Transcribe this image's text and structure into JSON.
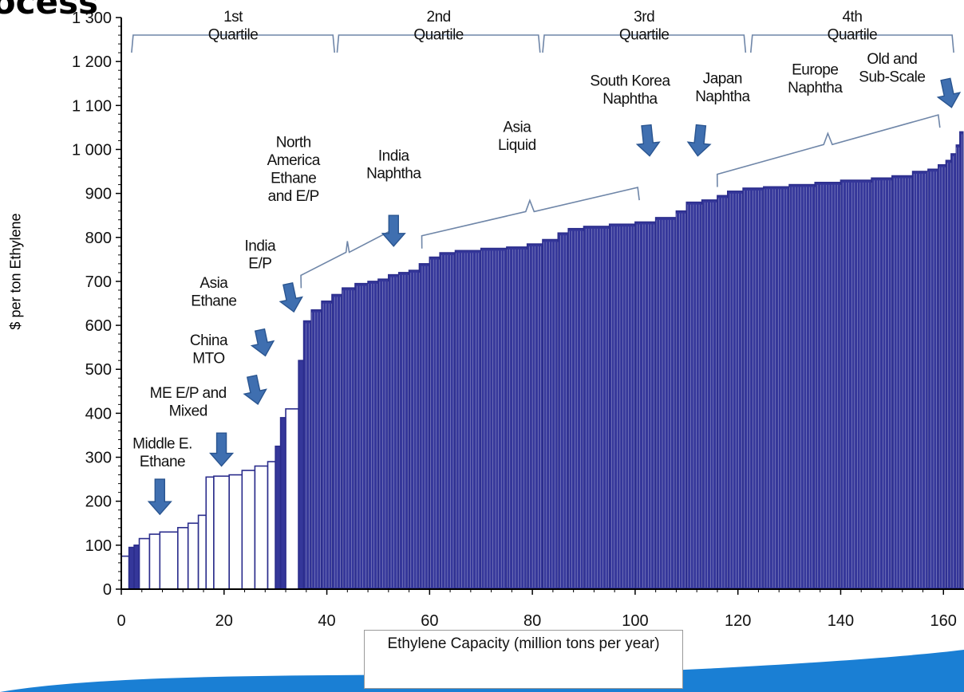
{
  "slide": {
    "title_fragment": "rocess"
  },
  "colors": {
    "bar_fill": "#35379a",
    "bar_edge": "#2b2d8c",
    "brace": "#6f86a8",
    "arrow": "#3f6fb0",
    "arrow_edge": "#2a5590",
    "banner": "#1a7fd4"
  },
  "chart_data": {
    "type": "bar",
    "title": "",
    "xlabel": "Ethylene Capacity (million tons per year)",
    "ylabel": "$ per ton Ethylene",
    "xlim": [
      0,
      164
    ],
    "ylim": [
      0,
      1300
    ],
    "xticks": [
      0,
      20,
      40,
      60,
      80,
      100,
      120,
      140,
      160
    ],
    "yticks": [
      0,
      100,
      200,
      300,
      400,
      500,
      600,
      700,
      800,
      900,
      1000,
      1100,
      1200,
      1300
    ],
    "ytick_labels": [
      "0",
      "100",
      "200",
      "300",
      "400",
      "500",
      "600",
      "700",
      "800",
      "900",
      "1 000",
      "1 100",
      "1 200",
      "1 300"
    ],
    "grid": false,
    "legend": "none",
    "steps": [
      {
        "x_end": 1.5,
        "y": 75
      },
      {
        "x_end": 2.5,
        "y": 95
      },
      {
        "x_end": 3.5,
        "y": 100
      },
      {
        "x_end": 5.5,
        "y": 115
      },
      {
        "x_end": 7.5,
        "y": 125
      },
      {
        "x_end": 11,
        "y": 130
      },
      {
        "x_end": 13,
        "y": 140
      },
      {
        "x_end": 15,
        "y": 150
      },
      {
        "x_end": 16.5,
        "y": 168
      },
      {
        "x_end": 18,
        "y": 255
      },
      {
        "x_end": 21,
        "y": 257
      },
      {
        "x_end": 23.5,
        "y": 260
      },
      {
        "x_end": 26,
        "y": 270
      },
      {
        "x_end": 28.5,
        "y": 280
      },
      {
        "x_end": 30,
        "y": 290
      },
      {
        "x_end": 31,
        "y": 325
      },
      {
        "x_end": 32,
        "y": 390
      },
      {
        "x_end": 34.5,
        "y": 410
      },
      {
        "x_end": 35.5,
        "y": 520
      },
      {
        "x_end": 37,
        "y": 610
      },
      {
        "x_end": 39,
        "y": 635
      },
      {
        "x_end": 41,
        "y": 655
      },
      {
        "x_end": 43,
        "y": 670
      },
      {
        "x_end": 45.5,
        "y": 685
      },
      {
        "x_end": 48,
        "y": 695
      },
      {
        "x_end": 50,
        "y": 700
      },
      {
        "x_end": 52,
        "y": 705
      },
      {
        "x_end": 54,
        "y": 715
      },
      {
        "x_end": 56,
        "y": 720
      },
      {
        "x_end": 58,
        "y": 725
      },
      {
        "x_end": 60,
        "y": 740
      },
      {
        "x_end": 62,
        "y": 755
      },
      {
        "x_end": 65,
        "y": 765
      },
      {
        "x_end": 70,
        "y": 770
      },
      {
        "x_end": 75,
        "y": 775
      },
      {
        "x_end": 79,
        "y": 778
      },
      {
        "x_end": 82,
        "y": 785
      },
      {
        "x_end": 85,
        "y": 795
      },
      {
        "x_end": 87,
        "y": 810
      },
      {
        "x_end": 90,
        "y": 820
      },
      {
        "x_end": 95,
        "y": 825
      },
      {
        "x_end": 100,
        "y": 830
      },
      {
        "x_end": 104,
        "y": 835
      },
      {
        "x_end": 108,
        "y": 845
      },
      {
        "x_end": 110,
        "y": 860
      },
      {
        "x_end": 113,
        "y": 880
      },
      {
        "x_end": 116,
        "y": 885
      },
      {
        "x_end": 118,
        "y": 895
      },
      {
        "x_end": 121,
        "y": 905
      },
      {
        "x_end": 125,
        "y": 912
      },
      {
        "x_end": 130,
        "y": 915
      },
      {
        "x_end": 135,
        "y": 920
      },
      {
        "x_end": 140,
        "y": 925
      },
      {
        "x_end": 146,
        "y": 930
      },
      {
        "x_end": 150,
        "y": 935
      },
      {
        "x_end": 154,
        "y": 940
      },
      {
        "x_end": 157,
        "y": 950
      },
      {
        "x_end": 159,
        "y": 955
      },
      {
        "x_end": 160.5,
        "y": 965
      },
      {
        "x_end": 161.5,
        "y": 975
      },
      {
        "x_end": 162.5,
        "y": 990
      },
      {
        "x_end": 163.2,
        "y": 1010
      },
      {
        "x_end": 163.8,
        "y": 1040
      }
    ],
    "segment_labels": [
      {
        "lines": [
          "Middle E.",
          "Ethane"
        ],
        "x": 8,
        "y": 320
      },
      {
        "lines": [
          "ME E/P and",
          "Mixed"
        ],
        "x": 13,
        "y": 435
      },
      {
        "lines": [
          "China",
          "MTO"
        ],
        "x": 17,
        "y": 555
      },
      {
        "lines": [
          "Asia",
          "Ethane"
        ],
        "x": 18,
        "y": 685
      },
      {
        "lines": [
          "India",
          "E/P"
        ],
        "x": 27,
        "y": 770
      },
      {
        "lines": [
          "North",
          "America",
          "Ethane",
          "and E/P"
        ],
        "x": 33.5,
        "y": 1005
      },
      {
        "lines": [
          "India",
          "Naphtha"
        ],
        "x": 53,
        "y": 975
      },
      {
        "lines": [
          "Asia",
          "Liquid"
        ],
        "x": 77,
        "y": 1040
      },
      {
        "lines": [
          "South Korea",
          "Naphtha"
        ],
        "x": 99,
        "y": 1145
      },
      {
        "lines": [
          "Japan",
          "Naphtha"
        ],
        "x": 117,
        "y": 1150
      },
      {
        "lines": [
          "Europe",
          "Naphtha"
        ],
        "x": 135,
        "y": 1170
      },
      {
        "lines": [
          "Old and",
          "Sub-Scale"
        ],
        "x": 150,
        "y": 1195
      }
    ],
    "quartiles": [
      {
        "lines": [
          "1st",
          "Quartile"
        ],
        "x_from": 2,
        "x_to": 41.5
      },
      {
        "lines": [
          "2nd",
          "Quartile"
        ],
        "x_from": 42,
        "x_to": 81.5
      },
      {
        "lines": [
          "3rd",
          "Quartile"
        ],
        "x_from": 82,
        "x_to": 121.5
      },
      {
        "lines": [
          "4th",
          "Quartile"
        ],
        "x_from": 122.5,
        "x_to": 162
      }
    ],
    "arrows": [
      {
        "x": 7.5,
        "y_from": 250,
        "y_to": 170
      },
      {
        "x": 19.5,
        "y_from": 355,
        "y_to": 280
      },
      {
        "x": 26,
        "y_from": 485,
        "y_to": 420
      },
      {
        "x": 27.5,
        "y_from": 590,
        "y_to": 530
      },
      {
        "x": 33,
        "y_from": 695,
        "y_to": 630
      },
      {
        "x": 53,
        "y_from": 850,
        "y_to": 780
      },
      {
        "x": 102.5,
        "y_from": 1055,
        "y_to": 985
      },
      {
        "x": 112.5,
        "y_from": 1055,
        "y_to": 985
      },
      {
        "x": 161,
        "y_from": 1160,
        "y_to": 1095
      }
    ],
    "segment_braces": [
      {
        "x1": 35,
        "x2": 53,
        "y1": 710,
        "y2": 815
      },
      {
        "x1": 58.5,
        "x2": 100.5,
        "y1": 800,
        "y2": 910
      },
      {
        "x1": 116,
        "x2": 159,
        "y1": 940,
        "y2": 1075
      }
    ]
  }
}
